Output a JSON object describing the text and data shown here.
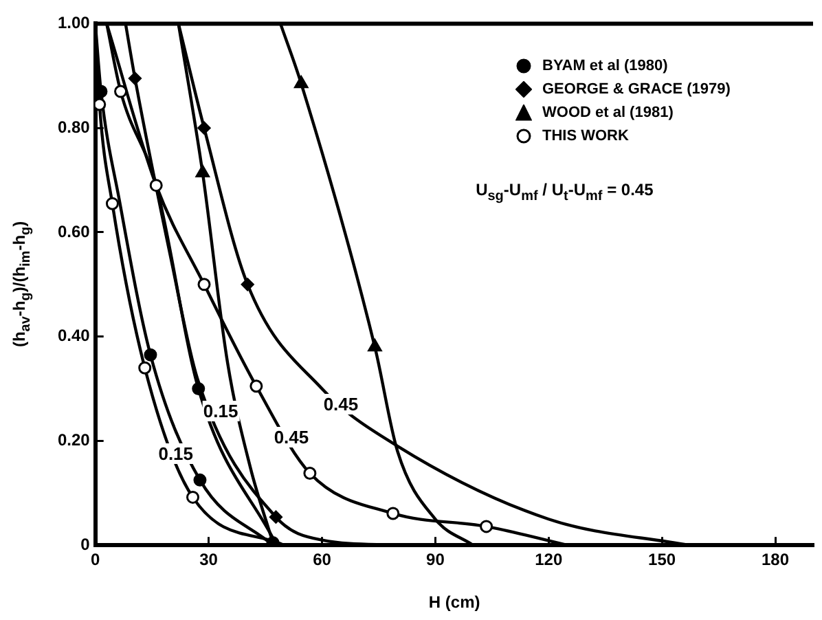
{
  "chart_data": {
    "type": "scatter",
    "xlabel": "H (cm)",
    "ylabel": "(h$_{av}$-h$_{g}$)/(h$_{im}$-h$_{g}$)",
    "xlim": [
      0,
      190
    ],
    "ylim": [
      0,
      1
    ],
    "xticks": [
      0,
      30,
      60,
      90,
      120,
      150,
      180
    ],
    "yticks": [
      0,
      {
        "value": 0.2,
        "label": "0.20"
      },
      {
        "value": 0.4,
        "label": "0.40"
      },
      {
        "value": 0.6,
        "label": "0.60"
      },
      {
        "value": 0.8,
        "label": "0.80"
      },
      {
        "value": 1,
        "label": "1.00"
      }
    ],
    "grid": false,
    "legend": "top right",
    "series": [
      {
        "name": "BYAM et al (1980)",
        "color": "#000000",
        "marker": "circle",
        "x": [
          1.5,
          14.6,
          27.3,
          27.7,
          47
        ],
        "values": [
          0.87,
          0.365,
          0.3,
          0.125,
          0.005
        ]
      },
      {
        "name": "GEORGE & GRACE (1979)",
        "color": "#000000",
        "marker": "diamond",
        "x": [
          10.5,
          28.8,
          40.3,
          47.8
        ],
        "values": [
          0.895,
          0.8,
          0.5,
          0.054
        ]
      },
      {
        "name": "WOOD et al (1981)",
        "color": "#000000",
        "marker": "triangle",
        "x": [
          28.4,
          54.5,
          74
        ],
        "values": [
          0.714,
          0.885,
          0.38
        ]
      },
      {
        "name": "THIS WORK",
        "color": "#ffffff",
        "marker": "circle",
        "x": [
          1.1,
          4.5,
          6.7,
          16.1,
          28.8,
          13.1,
          42.6,
          25.8,
          56.8,
          78.8,
          103.5
        ],
        "values": [
          0.845,
          0.655,
          0.87,
          0.69,
          0.5,
          0.34,
          0.305,
          0.092,
          0.138,
          0.061,
          0.036
        ]
      },
      {
        "type": "line",
        "color": "#000000",
        "marker": "none",
        "x": [
          0,
          1.1,
          4.5,
          13.1,
          25.8,
          50
        ],
        "values": [
          1,
          0.845,
          0.655,
          0.34,
          0.092,
          0
        ]
      },
      {
        "type": "line",
        "color": "#000000",
        "marker": "none",
        "x": [
          0,
          1.5,
          6.4,
          14.6,
          27.7,
          47
        ],
        "values": [
          1,
          0.87,
          0.66,
          0.365,
          0.125,
          0
        ]
      },
      {
        "type": "line",
        "color": "#000000",
        "marker": "none",
        "x": [
          3,
          6.7,
          16.1,
          27.3,
          48
        ],
        "values": [
          1,
          0.87,
          0.69,
          0.3,
          0
        ]
      },
      {
        "type": "line",
        "color": "#000000",
        "marker": "none",
        "x": [
          8,
          10.5,
          20,
          27,
          47.8,
          60,
          80
        ],
        "values": [
          1,
          0.895,
          0.55,
          0.32,
          0.054,
          0.01,
          0
        ]
      },
      {
        "type": "line",
        "color": "#000000",
        "marker": "none",
        "x": [
          22,
          28.4,
          35,
          41,
          47
        ],
        "values": [
          1,
          0.714,
          0.35,
          0.15,
          0.005
        ]
      },
      {
        "type": "line",
        "color": "#000000",
        "marker": "none",
        "x": [
          22,
          28.8,
          40.3,
          60,
          80,
          120,
          157
        ],
        "values": [
          1,
          0.8,
          0.5,
          0.3,
          0.19,
          0.05,
          0
        ]
      },
      {
        "type": "line",
        "color": "#000000",
        "marker": "none",
        "x": [
          3,
          16.1,
          28.8,
          42.6,
          56.8,
          78.8,
          103.5,
          125
        ],
        "values": [
          1,
          0.69,
          0.5,
          0.305,
          0.138,
          0.061,
          0.036,
          0
        ]
      },
      {
        "type": "line",
        "color": "#000000",
        "marker": "none",
        "x": [
          49,
          54.5,
          74,
          80,
          90,
          100
        ],
        "values": [
          1,
          0.885,
          0.38,
          0.18,
          0.05,
          0
        ]
      }
    ],
    "annotations": [
      {
        "text": "0.15",
        "x": 21.3,
        "y": 0.176
      },
      {
        "text": "0.15",
        "x": 33.2,
        "y": 0.258
      },
      {
        "text": "0.45",
        "x": 51.9,
        "y": 0.207
      },
      {
        "text": "0.45",
        "x": 65,
        "y": 0.27
      },
      "U$_{sg}$-U$_{mf}$ / U$_{t}$-U$_{mf}$ = 0.45"
    ]
  }
}
